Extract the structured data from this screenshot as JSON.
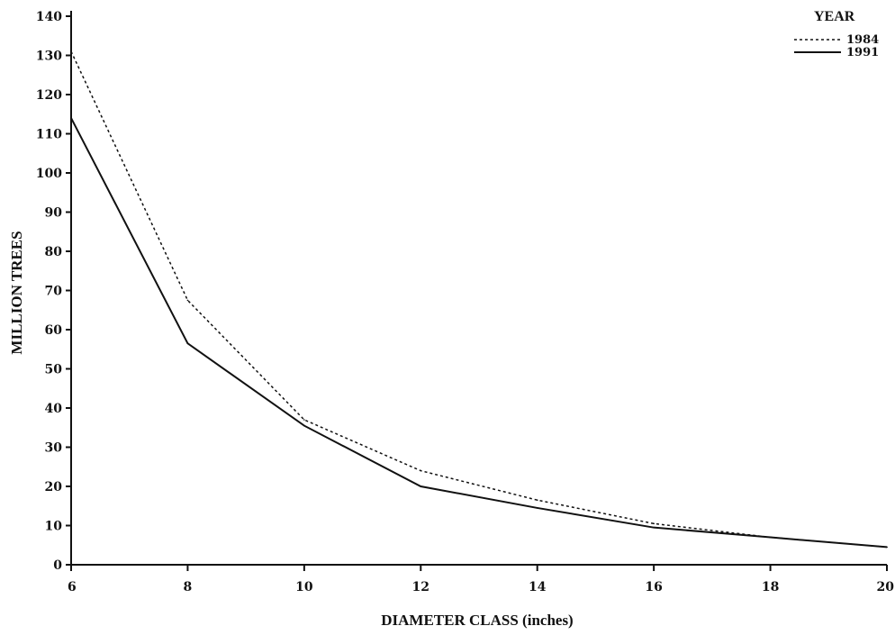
{
  "chart_data": {
    "type": "line",
    "title": "",
    "xlabel": "DIAMETER CLASS (inches)",
    "ylabel": "MILLION TREES",
    "x": [
      6,
      8,
      10,
      12,
      14,
      16,
      18,
      20
    ],
    "xlim": [
      6,
      20
    ],
    "ylim": [
      0,
      140
    ],
    "x_ticks": [
      6,
      8,
      10,
      12,
      14,
      16,
      18,
      20
    ],
    "y_ticks": [
      0,
      10,
      20,
      30,
      40,
      50,
      60,
      70,
      80,
      90,
      100,
      110,
      120,
      130,
      140
    ],
    "grid": false,
    "legend": {
      "title": "YEAR",
      "placement": "top-right"
    },
    "series": [
      {
        "name": "1984",
        "style": "dashed",
        "color": "#111111",
        "values": [
          131,
          67.5,
          37,
          24,
          16.5,
          10.5,
          7,
          4.5
        ]
      },
      {
        "name": "1991",
        "style": "solid",
        "color": "#111111",
        "values": [
          114,
          56.5,
          35.5,
          20,
          14.5,
          9.5,
          7,
          4.5
        ]
      }
    ]
  }
}
